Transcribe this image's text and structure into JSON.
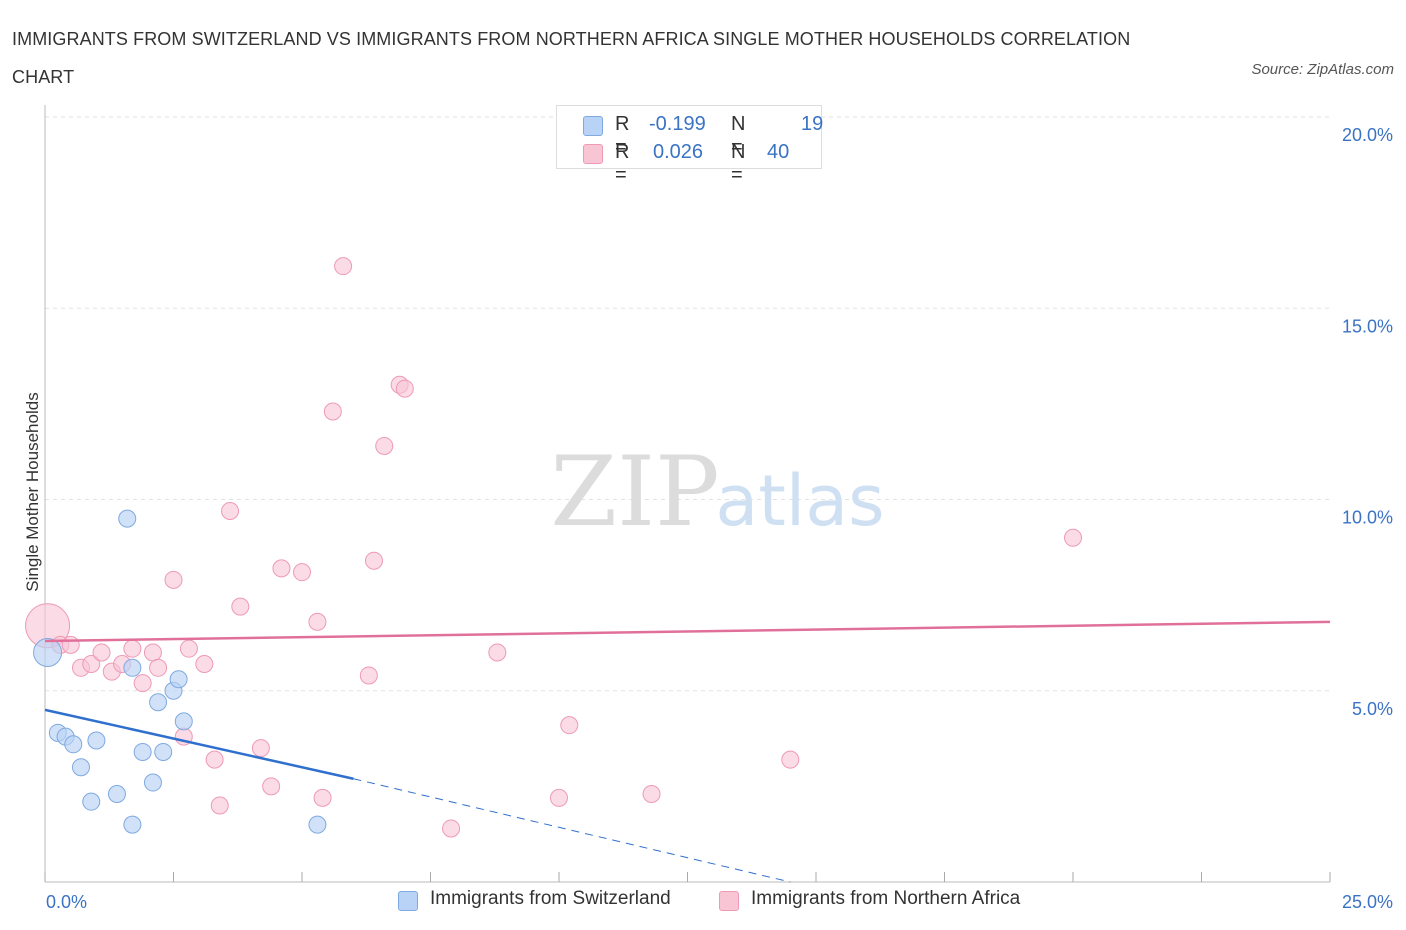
{
  "header": {
    "title": "IMMIGRANTS FROM SWITZERLAND VS IMMIGRANTS FROM NORTHERN AFRICA SINGLE MOTHER HOUSEHOLDS CORRELATION CHART",
    "source": "Source: ZipAtlas.com"
  },
  "watermark": {
    "zip": "ZIP",
    "atlas": "atlas"
  },
  "legend_top": [
    {
      "r_label": "R =",
      "r_value": "-0.199",
      "n_label": "N =",
      "n_value": "19"
    },
    {
      "r_label": "R =",
      "r_value": "0.026",
      "n_label": "N =",
      "n_value": "40"
    }
  ],
  "colors": {
    "blue_fill": "#b8d3f5",
    "blue_stroke": "#7fa9e0",
    "blue_line": "#2f6fce",
    "pink_fill": "#f8c5d5",
    "pink_stroke": "#ee9ab5",
    "pink_line": "#e0709a",
    "tick_label": "#3a73c4",
    "grid": "#e2e2e2"
  },
  "chart_data": {
    "type": "scatter",
    "title": "IMMIGRANTS FROM SWITZERLAND VS IMMIGRANTS FROM NORTHERN AFRICA SINGLE MOTHER HOUSEHOLDS CORRELATION CHART",
    "xlabel": "",
    "ylabel": "Single Mother Households",
    "xlim": [
      0,
      25
    ],
    "ylim": [
      0,
      20
    ],
    "x_tick_labels": [
      "0.0%",
      "25.0%"
    ],
    "y_ticks": [
      5,
      10,
      15,
      20
    ],
    "y_tick_labels": [
      "5.0%",
      "10.0%",
      "15.0%",
      "20.0%"
    ],
    "grid": true,
    "legend_position": "top-center",
    "series": [
      {
        "name": "Immigrants from Switzerland",
        "color": "blue",
        "r": -0.199,
        "n": 19,
        "points": [
          [
            0.05,
            6.0
          ],
          [
            0.25,
            3.9
          ],
          [
            0.4,
            3.8
          ],
          [
            0.55,
            3.6
          ],
          [
            0.7,
            3.0
          ],
          [
            0.9,
            2.1
          ],
          [
            1.0,
            3.7
          ],
          [
            1.4,
            2.3
          ],
          [
            1.6,
            9.5
          ],
          [
            1.7,
            5.6
          ],
          [
            1.7,
            1.5
          ],
          [
            1.9,
            3.4
          ],
          [
            2.1,
            2.6
          ],
          [
            2.2,
            4.7
          ],
          [
            2.3,
            3.4
          ],
          [
            2.5,
            5.0
          ],
          [
            2.6,
            5.3
          ],
          [
            2.7,
            4.2
          ],
          [
            5.3,
            1.5
          ]
        ],
        "trend": {
          "x": [
            0,
            6.0
          ],
          "y": [
            4.5,
            2.7
          ],
          "dashed_to": [
            14.5,
            0.0
          ]
        }
      },
      {
        "name": "Immigrants from Northern Africa",
        "color": "pink",
        "r": 0.026,
        "n": 40,
        "points": [
          [
            0.05,
            6.7
          ],
          [
            0.3,
            6.2
          ],
          [
            0.5,
            6.2
          ],
          [
            0.7,
            5.6
          ],
          [
            0.9,
            5.7
          ],
          [
            1.1,
            6.0
          ],
          [
            1.3,
            5.5
          ],
          [
            1.5,
            5.7
          ],
          [
            1.7,
            6.1
          ],
          [
            1.9,
            5.2
          ],
          [
            2.1,
            6.0
          ],
          [
            2.2,
            5.6
          ],
          [
            2.5,
            7.9
          ],
          [
            2.7,
            3.8
          ],
          [
            2.8,
            6.1
          ],
          [
            3.1,
            5.7
          ],
          [
            3.3,
            3.2
          ],
          [
            3.4,
            2.0
          ],
          [
            3.6,
            9.7
          ],
          [
            3.8,
            7.2
          ],
          [
            4.2,
            3.5
          ],
          [
            4.4,
            2.5
          ],
          [
            4.6,
            8.2
          ],
          [
            5.0,
            8.1
          ],
          [
            5.3,
            6.8
          ],
          [
            5.4,
            2.2
          ],
          [
            5.6,
            12.3
          ],
          [
            5.8,
            16.1
          ],
          [
            6.3,
            5.4
          ],
          [
            6.4,
            8.4
          ],
          [
            6.6,
            11.4
          ],
          [
            6.9,
            13.0
          ],
          [
            7.0,
            12.9
          ],
          [
            7.9,
            1.4
          ],
          [
            8.8,
            6.0
          ],
          [
            10.0,
            2.2
          ],
          [
            10.2,
            4.1
          ],
          [
            11.8,
            2.3
          ],
          [
            14.5,
            3.2
          ],
          [
            20.0,
            9.0
          ]
        ],
        "trend": {
          "x": [
            0,
            25
          ],
          "y": [
            6.3,
            6.8
          ]
        }
      }
    ]
  },
  "legend_bottom": [
    {
      "label": "Immigrants from Switzerland"
    },
    {
      "label": "Immigrants from Northern Africa"
    }
  ]
}
